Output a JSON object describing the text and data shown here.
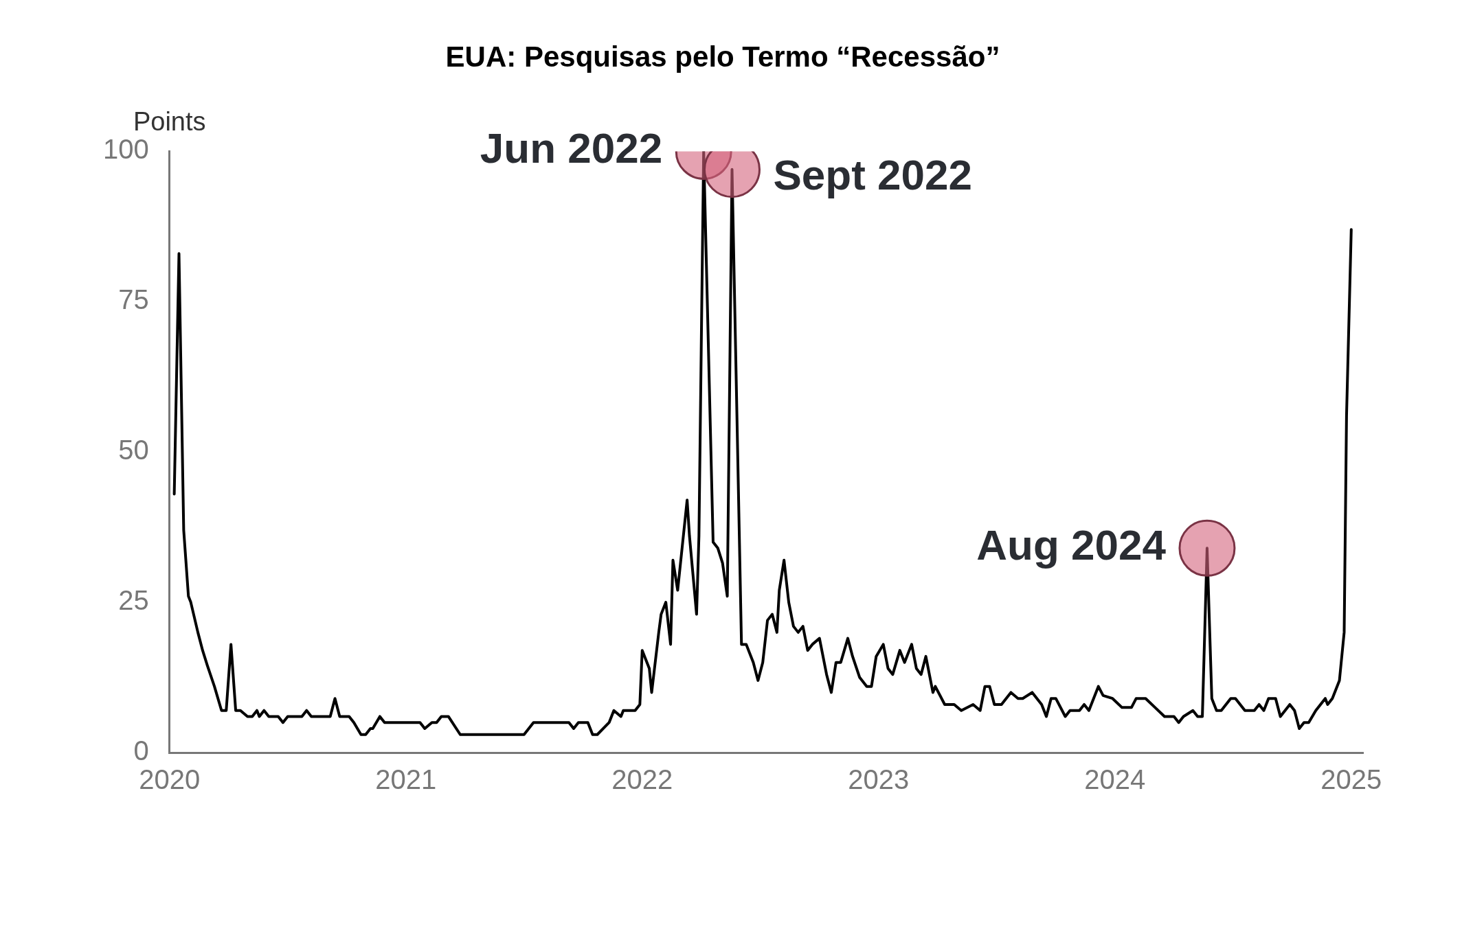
{
  "chart_data": {
    "type": "line",
    "title": "EUA: Pesquisas pelo Termo “Recessão”",
    "ylabel": "Points",
    "xlim": [
      2020,
      2025.05
    ],
    "xticks": [
      2020,
      2021,
      2022,
      2023,
      2024,
      2025
    ],
    "ylim": [
      0,
      100
    ],
    "yticks": [
      0,
      25,
      50,
      75,
      100
    ],
    "grid": false,
    "legend": false,
    "marker": "none",
    "line_style": "solid",
    "series": [
      {
        "color": "#000000",
        "x": [
          2020.02,
          2020.04,
          2020.06,
          2020.08,
          2020.09,
          2020.12,
          2020.14,
          2020.16,
          2020.19,
          2020.22,
          2020.24,
          2020.26,
          2020.28,
          2020.3,
          2020.33,
          2020.35,
          2020.37,
          2020.38,
          2020.4,
          2020.42,
          2020.46,
          2020.48,
          2020.5,
          2020.56,
          2020.58,
          2020.6,
          2020.68,
          2020.7,
          2020.72,
          2020.76,
          2020.78,
          2020.81,
          2020.83,
          2020.85,
          2020.86,
          2020.89,
          2020.91,
          2021.06,
          2021.08,
          2021.11,
          2021.13,
          2021.15,
          2021.18,
          2021.23,
          2021.5,
          2021.54,
          2021.69,
          2021.71,
          2021.73,
          2021.77,
          2021.79,
          2021.81,
          2021.86,
          2021.88,
          2021.91,
          2021.92,
          2021.97,
          2021.99,
          2022.0,
          2022.03,
          2022.04,
          2022.07,
          2022.08,
          2022.1,
          2022.12,
          2022.13,
          2022.15,
          2022.19,
          2022.2,
          2022.23,
          2022.24,
          2022.26,
          2022.3,
          2022.32,
          2022.34,
          2022.36,
          2022.38,
          2022.42,
          2022.44,
          2022.46,
          2022.47,
          2022.49,
          2022.51,
          2022.53,
          2022.55,
          2022.57,
          2022.58,
          2022.6,
          2022.62,
          2022.64,
          2022.66,
          2022.68,
          2022.7,
          2022.72,
          2022.75,
          2022.76,
          2022.78,
          2022.8,
          2022.82,
          2022.84,
          2022.87,
          2022.89,
          2022.92,
          2022.95,
          2022.97,
          2022.99,
          2023.02,
          2023.04,
          2023.06,
          2023.09,
          2023.11,
          2023.14,
          2023.16,
          2023.18,
          2023.2,
          2023.23,
          2023.24,
          2023.28,
          2023.3,
          2023.32,
          2023.35,
          2023.4,
          2023.43,
          2023.45,
          2023.47,
          2023.49,
          2023.52,
          2023.56,
          2023.59,
          2023.61,
          2023.65,
          2023.69,
          2023.71,
          2023.73,
          2023.75,
          2023.79,
          2023.81,
          2023.85,
          2023.87,
          2023.89,
          2023.93,
          2023.95,
          2023.99,
          2024.03,
          2024.07,
          2024.09,
          2024.13,
          2024.17,
          2024.21,
          2024.25,
          2024.27,
          2024.29,
          2024.33,
          2024.35,
          2024.37,
          2024.39,
          2024.41,
          2024.43,
          2024.45,
          2024.49,
          2024.51,
          2024.55,
          2024.59,
          2024.61,
          2024.63,
          2024.65,
          2024.68,
          2024.7,
          2024.74,
          2024.76,
          2024.78,
          2024.8,
          2024.82,
          2024.85,
          2024.89,
          2024.9,
          2024.92,
          2024.95,
          2024.97,
          2024.98,
          2025.0
        ],
        "values": [
          43,
          83,
          37,
          26,
          25,
          20,
          17,
          14.5,
          11,
          7,
          7,
          18,
          7,
          7,
          6,
          6,
          7,
          6,
          7,
          6,
          6,
          5,
          6,
          6,
          7,
          6,
          6,
          9,
          6,
          6,
          5,
          3,
          3,
          4,
          4,
          6,
          5,
          5,
          4,
          5,
          5,
          6,
          6,
          3,
          3,
          5,
          5,
          4,
          5,
          5,
          3,
          3,
          5,
          7,
          6,
          7,
          7,
          8,
          17,
          14,
          10,
          20,
          23,
          25,
          18,
          32,
          27,
          42,
          36,
          23,
          36,
          100,
          35,
          34,
          31.5,
          26,
          97,
          18,
          18,
          16,
          15,
          12,
          15,
          22,
          23,
          20,
          27,
          32,
          25,
          21,
          20,
          21,
          17,
          18,
          19,
          17,
          13,
          10,
          15,
          15,
          19,
          16,
          12.5,
          11,
          11,
          16,
          18,
          14,
          13,
          17,
          15,
          18,
          14,
          13,
          16,
          10,
          11,
          8,
          8,
          8,
          7,
          8,
          7,
          11,
          11,
          8,
          8,
          10,
          9,
          9,
          10,
          8,
          6,
          9,
          9,
          6,
          7,
          7,
          8,
          7,
          11,
          9.5,
          9,
          7.5,
          7.5,
          9,
          9,
          7.5,
          6,
          6,
          5,
          6,
          7,
          6,
          6,
          34,
          9,
          7,
          7,
          9,
          9,
          7,
          7,
          8,
          7,
          9,
          9,
          6,
          8,
          7,
          4,
          5,
          5,
          7,
          9,
          8,
          9,
          12,
          20,
          56,
          87
        ]
      },
      {
        "type": "scatter",
        "color": "#d4647d",
        "marker": "circle",
        "x": [
          2022.26,
          2022.38,
          2024.39
        ],
        "values": [
          100,
          97,
          34
        ]
      }
    ],
    "annotations": [
      {
        "text": "Jun 2022",
        "x": 2022.26,
        "y": 100
      },
      {
        "text": "Sept 2022",
        "x": 2022.38,
        "y": 97
      },
      {
        "text": "Aug 2024",
        "x": 2024.39,
        "y": 34
      }
    ]
  }
}
